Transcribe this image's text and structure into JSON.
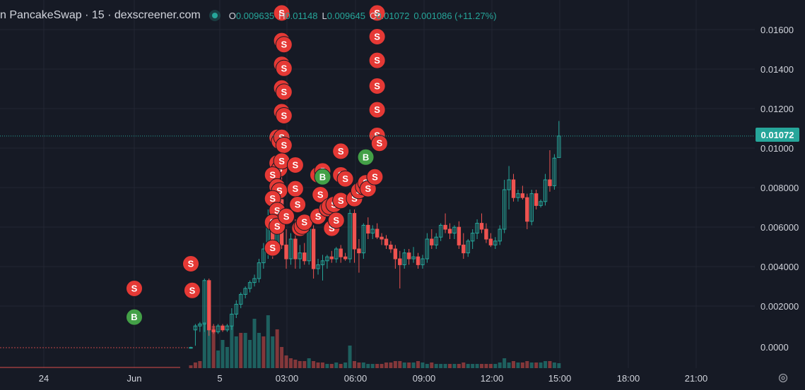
{
  "header": {
    "title": "n PancakeSwap · 15 · dexscreener.com",
    "open_key": "O",
    "open_val": "0.009635",
    "high_key": "H",
    "high_val": "0.01148",
    "low_key": "L",
    "low_val": "0.009645",
    "close_key": "C",
    "close_val": "0.01072",
    "change": "0.001086 (+11.27%)"
  },
  "current_price": "0.01072",
  "colors": {
    "up": "#26a69a",
    "down": "#ef5350",
    "sell": "#e53935",
    "buy": "#43a047",
    "background": "#161a25"
  },
  "icons": {
    "settings": "gear-icon"
  },
  "chart_data": {
    "type": "candlestick",
    "y_axis_ticks": [
      "0.01600",
      "0.01400",
      "0.01200",
      "0.01000",
      "0.008000",
      "0.006000",
      "0.004000",
      "0.002000",
      "0.0000"
    ],
    "x_axis_ticks": [
      "24",
      "Jun",
      "5",
      "03:00",
      "06:00",
      "09:00",
      "12:00",
      "15:00",
      "18:00",
      "21:00"
    ],
    "ylim": [
      -0.0009,
      0.0171
    ],
    "last_price": 0.01072,
    "candles": [
      [
        0.0,
        5e-05,
        -5e-05,
        1e-05
      ],
      [
        0.0009,
        0.0012,
        0.0001,
        0.0011
      ],
      [
        0.0011,
        0.0013,
        0.0008,
        0.0012
      ],
      [
        0.0012,
        0.0035,
        0.0008,
        0.0034
      ],
      [
        0.0034,
        0.0035,
        0.0006,
        0.0009
      ],
      [
        0.0009,
        0.0012,
        0.0007,
        0.0008
      ],
      [
        0.0008,
        0.0012,
        0.0007,
        0.0011
      ],
      [
        0.0011,
        0.0012,
        0.0008,
        0.0009
      ],
      [
        0.0009,
        0.0012,
        0.0008,
        0.0011
      ],
      [
        0.0011,
        0.002,
        0.0009,
        0.0017
      ],
      [
        0.0017,
        0.0024,
        0.0015,
        0.0022
      ],
      [
        0.0022,
        0.0028,
        0.002,
        0.0027
      ],
      [
        0.0027,
        0.0031,
        0.0025,
        0.003
      ],
      [
        0.003,
        0.0034,
        0.0028,
        0.0033
      ],
      [
        0.0033,
        0.0037,
        0.0031,
        0.0035
      ],
      [
        0.0035,
        0.0045,
        0.0033,
        0.0043
      ],
      [
        0.0043,
        0.0053,
        0.004,
        0.005
      ],
      [
        0.005,
        0.007,
        0.0045,
        0.0062
      ],
      [
        0.0062,
        0.0065,
        0.0045,
        0.005
      ],
      [
        0.005,
        0.0078,
        0.0048,
        0.0075
      ],
      [
        0.0075,
        0.0088,
        0.005,
        0.0052
      ],
      [
        0.0052,
        0.006,
        0.004,
        0.0045
      ],
      [
        0.0045,
        0.0058,
        0.0042,
        0.0055
      ],
      [
        0.0055,
        0.0065,
        0.004,
        0.0045
      ],
      [
        0.0045,
        0.0052,
        0.004,
        0.0048
      ],
      [
        0.0048,
        0.0053,
        0.0042,
        0.0044
      ],
      [
        0.0044,
        0.0063,
        0.0042,
        0.006
      ],
      [
        0.006,
        0.0062,
        0.0035,
        0.004
      ],
      [
        0.004,
        0.0045,
        0.0037,
        0.0042
      ],
      [
        0.0042,
        0.0047,
        0.0034,
        0.0044
      ],
      [
        0.0044,
        0.0047,
        0.004,
        0.0046
      ],
      [
        0.0046,
        0.0049,
        0.0043,
        0.0045
      ],
      [
        0.0045,
        0.0051,
        0.0043,
        0.005
      ],
      [
        0.005,
        0.0052,
        0.0043,
        0.0046
      ],
      [
        0.0046,
        0.0048,
        0.0044,
        0.0045
      ],
      [
        0.0045,
        0.007,
        0.0043,
        0.0068
      ],
      [
        0.0068,
        0.007,
        0.0043,
        0.005
      ],
      [
        0.005,
        0.0055,
        0.0038,
        0.0048
      ],
      [
        0.0048,
        0.0063,
        0.0045,
        0.0062
      ],
      [
        0.0062,
        0.0066,
        0.0055,
        0.0058
      ],
      [
        0.0058,
        0.0062,
        0.0055,
        0.006
      ],
      [
        0.006,
        0.0063,
        0.0055,
        0.0056
      ],
      [
        0.0056,
        0.0058,
        0.0052,
        0.0055
      ],
      [
        0.0055,
        0.0057,
        0.005,
        0.0052
      ],
      [
        0.0052,
        0.0054,
        0.0048,
        0.005
      ],
      [
        0.005,
        0.0052,
        0.004,
        0.0045
      ],
      [
        0.0045,
        0.0049,
        0.003,
        0.0042
      ],
      [
        0.0042,
        0.005,
        0.004,
        0.0048
      ],
      [
        0.0048,
        0.005,
        0.0042,
        0.0045
      ],
      [
        0.0045,
        0.0051,
        0.0043,
        0.0046
      ],
      [
        0.0046,
        0.0048,
        0.004,
        0.0042
      ],
      [
        0.0042,
        0.0047,
        0.004,
        0.0045
      ],
      [
        0.0045,
        0.0058,
        0.0043,
        0.0055
      ],
      [
        0.0055,
        0.006,
        0.005,
        0.0052
      ],
      [
        0.0052,
        0.0058,
        0.005,
        0.0056
      ],
      [
        0.0056,
        0.0063,
        0.0054,
        0.0062
      ],
      [
        0.0062,
        0.0068,
        0.0058,
        0.006
      ],
      [
        0.006,
        0.0063,
        0.0055,
        0.0058
      ],
      [
        0.0058,
        0.0062,
        0.0055,
        0.0061
      ],
      [
        0.0061,
        0.0064,
        0.005,
        0.0052
      ],
      [
        0.0052,
        0.0058,
        0.0045,
        0.0048
      ],
      [
        0.0048,
        0.0055,
        0.0046,
        0.0054
      ],
      [
        0.0054,
        0.006,
        0.005,
        0.0058
      ],
      [
        0.0058,
        0.0065,
        0.0055,
        0.0063
      ],
      [
        0.0063,
        0.0068,
        0.0058,
        0.006
      ],
      [
        0.006,
        0.0063,
        0.0053,
        0.0055
      ],
      [
        0.0055,
        0.0058,
        0.0051,
        0.0052
      ],
      [
        0.0052,
        0.0056,
        0.005,
        0.0054
      ],
      [
        0.0054,
        0.0062,
        0.0052,
        0.006
      ],
      [
        0.006,
        0.0085,
        0.0058,
        0.008
      ],
      [
        0.008,
        0.0092,
        0.007,
        0.0085
      ],
      [
        0.0085,
        0.0088,
        0.0074,
        0.0076
      ],
      [
        0.0076,
        0.008,
        0.0074,
        0.0078
      ],
      [
        0.0078,
        0.0082,
        0.0075,
        0.0076
      ],
      [
        0.0076,
        0.0078,
        0.006,
        0.0064
      ],
      [
        0.0064,
        0.008,
        0.0062,
        0.0078
      ],
      [
        0.0078,
        0.008,
        0.007,
        0.0072
      ],
      [
        0.0072,
        0.0075,
        0.0071,
        0.0074
      ],
      [
        0.0074,
        0.0088,
        0.0072,
        0.0085
      ],
      [
        0.0085,
        0.01,
        0.0079,
        0.0082
      ],
      [
        0.0082,
        0.0098,
        0.008,
        0.0096
      ],
      [
        0.00963,
        0.01148,
        0.009645,
        0.01072
      ]
    ],
    "volume": [
      [
        4,
        0
      ],
      [
        8,
        0
      ],
      [
        10,
        0
      ],
      [
        65,
        1
      ],
      [
        90,
        1
      ],
      [
        60,
        0
      ],
      [
        25,
        1
      ],
      [
        40,
        1
      ],
      [
        30,
        1
      ],
      [
        60,
        1
      ],
      [
        45,
        1
      ],
      [
        50,
        0
      ],
      [
        50,
        1
      ],
      [
        40,
        1
      ],
      [
        70,
        1
      ],
      [
        50,
        1
      ],
      [
        45,
        0
      ],
      [
        75,
        1
      ],
      [
        45,
        1
      ],
      [
        55,
        0
      ],
      [
        30,
        0
      ],
      [
        18,
        0
      ],
      [
        14,
        0
      ],
      [
        12,
        0
      ],
      [
        10,
        0
      ],
      [
        10,
        0
      ],
      [
        14,
        1
      ],
      [
        10,
        0
      ],
      [
        8,
        0
      ],
      [
        8,
        0
      ],
      [
        6,
        1
      ],
      [
        6,
        0
      ],
      [
        8,
        1
      ],
      [
        6,
        0
      ],
      [
        8,
        1
      ],
      [
        32,
        1
      ],
      [
        10,
        0
      ],
      [
        8,
        0
      ],
      [
        8,
        1
      ],
      [
        6,
        1
      ],
      [
        6,
        1
      ],
      [
        6,
        0
      ],
      [
        6,
        0
      ],
      [
        8,
        0
      ],
      [
        8,
        0
      ],
      [
        10,
        0
      ],
      [
        10,
        0
      ],
      [
        8,
        1
      ],
      [
        8,
        0
      ],
      [
        8,
        1
      ],
      [
        10,
        0
      ],
      [
        8,
        1
      ],
      [
        6,
        1
      ],
      [
        8,
        0
      ],
      [
        6,
        1
      ],
      [
        6,
        1
      ],
      [
        6,
        1
      ],
      [
        6,
        0
      ],
      [
        6,
        1
      ],
      [
        6,
        0
      ],
      [
        8,
        0
      ],
      [
        6,
        1
      ],
      [
        6,
        1
      ],
      [
        6,
        1
      ],
      [
        6,
        0
      ],
      [
        6,
        0
      ],
      [
        6,
        0
      ],
      [
        6,
        1
      ],
      [
        8,
        1
      ],
      [
        14,
        1
      ],
      [
        8,
        1
      ],
      [
        10,
        0
      ],
      [
        8,
        1
      ],
      [
        8,
        0
      ],
      [
        10,
        0
      ],
      [
        8,
        1
      ],
      [
        8,
        0
      ],
      [
        8,
        1
      ],
      [
        10,
        1
      ],
      [
        10,
        0
      ],
      [
        8,
        1
      ],
      [
        7,
        1
      ]
    ],
    "markers": [
      [
        "S",
        0.00425,
        0
      ],
      [
        "S",
        0.003,
        -0.3
      ],
      [
        "S",
        0.0029,
        0.3
      ],
      [
        "B",
        0.00155,
        -1
      ],
      [
        "S",
        0.01695,
        20
      ],
      [
        "S",
        0.01555,
        20
      ],
      [
        "S",
        0.01535,
        20.5
      ],
      [
        "S",
        0.01435,
        20
      ],
      [
        "S",
        0.01415,
        20.5
      ],
      [
        "S",
        0.01315,
        20
      ],
      [
        "S",
        0.01295,
        20.5
      ],
      [
        "S",
        0.01195,
        20
      ],
      [
        "S",
        0.01175,
        20.5
      ],
      [
        "S",
        0.01065,
        19
      ],
      [
        "S",
        0.01045,
        19.5
      ],
      [
        "S",
        0.01065,
        20
      ],
      [
        "S",
        0.01025,
        20.5
      ],
      [
        "S",
        0.00935,
        19
      ],
      [
        "S",
        0.00905,
        19.5
      ],
      [
        "S",
        0.00945,
        20
      ],
      [
        "S",
        0.00875,
        18
      ],
      [
        "S",
        0.00815,
        19
      ],
      [
        "S",
        0.00795,
        19.5
      ],
      [
        "S",
        0.00755,
        18
      ],
      [
        "S",
        0.00695,
        19
      ],
      [
        "S",
        0.00635,
        18
      ],
      [
        "S",
        0.00615,
        19
      ],
      [
        "S",
        0.00505,
        18
      ],
      [
        "S",
        0.00665,
        21
      ],
      [
        "S",
        0.00925,
        23
      ],
      [
        "S",
        0.00805,
        23
      ],
      [
        "S",
        0.00725,
        23.5
      ],
      [
        "S",
        0.00605,
        24
      ],
      [
        "S",
        0.00615,
        24.5
      ],
      [
        "S",
        0.00635,
        25
      ],
      [
        "S",
        0.00875,
        28
      ],
      [
        "S",
        0.00895,
        29
      ],
      [
        "B",
        0.00865,
        29
      ],
      [
        "S",
        0.00775,
        28.5
      ],
      [
        "S",
        0.00665,
        28
      ],
      [
        "S",
        0.00705,
        30
      ],
      [
        "S",
        0.00715,
        30.5
      ],
      [
        "S",
        0.00725,
        31.5
      ],
      [
        "S",
        0.00605,
        31
      ],
      [
        "S",
        0.00645,
        32
      ],
      [
        "S",
        0.00995,
        33
      ],
      [
        "S",
        0.00875,
        33
      ],
      [
        "S",
        0.00745,
        33
      ],
      [
        "S",
        0.00855,
        34
      ],
      [
        "S",
        0.00755,
        36
      ],
      [
        "S",
        0.00795,
        37
      ],
      [
        "S",
        0.00815,
        38
      ],
      [
        "S",
        0.00835,
        38.5
      ],
      [
        "S",
        0.00805,
        39
      ],
      [
        "B",
        0.00965,
        38.5
      ],
      [
        "S",
        0.00865,
        40.5
      ],
      [
        "S",
        0.01695,
        41
      ],
      [
        "S",
        0.01575,
        41
      ],
      [
        "S",
        0.01455,
        41
      ],
      [
        "S",
        0.01325,
        41
      ],
      [
        "S",
        0.01205,
        41
      ],
      [
        "S",
        0.01075,
        41
      ],
      [
        "S",
        0.01035,
        41.5
      ]
    ]
  }
}
